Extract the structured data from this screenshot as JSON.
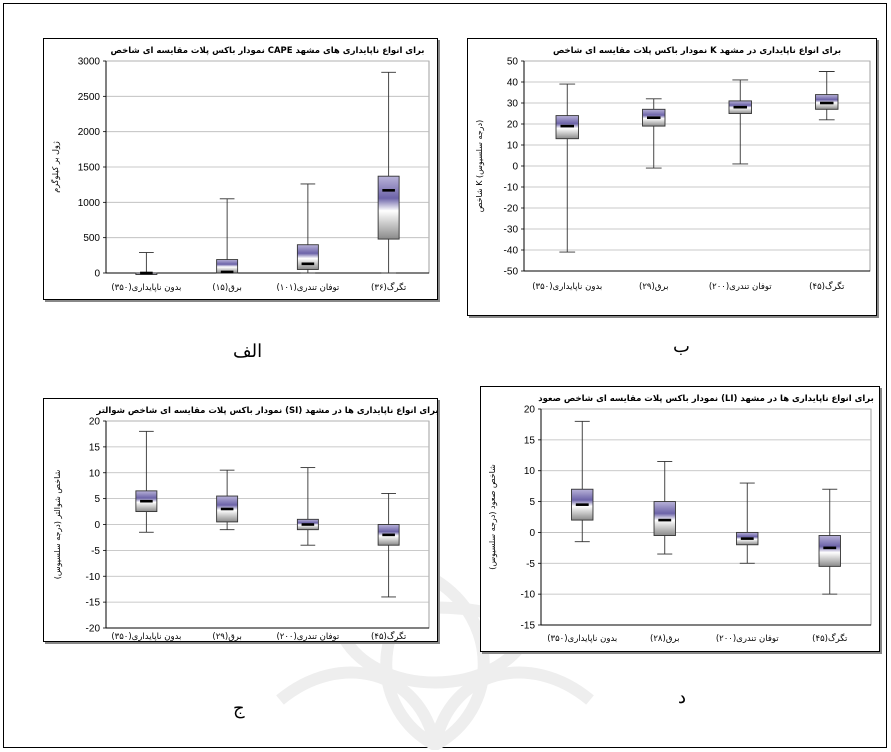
{
  "captions": [
    "الف",
    "ب",
    "ج",
    "د"
  ],
  "chart_data": [
    {
      "type": "box",
      "title": "نمودار باکس پلات مقایسه ای شاخص CAPE برای انواع ناپایداری های مشهد",
      "ylabel": "ژول بر کیلوگرم",
      "ylim": [
        0,
        3000
      ],
      "ytick_step": 500,
      "yticks": [
        "0",
        "500",
        "1000",
        "1500",
        "2000",
        "2500",
        "3000"
      ],
      "categories": [
        "بدون ناپایداری(۳۵۰)",
        "برق(۱۵)",
        "توفان تندری(۱۰۱)",
        "تگرگ(۳۶)"
      ],
      "boxes": [
        {
          "min": 0,
          "q1": 0,
          "median": 0,
          "q3": 0,
          "max": 290
        },
        {
          "min": 0,
          "q1": 0,
          "median": 15,
          "q3": 190,
          "max": 1050
        },
        {
          "min": 0,
          "q1": 50,
          "median": 130,
          "q3": 400,
          "max": 1260
        },
        {
          "min": 0,
          "q1": 480,
          "median": 1170,
          "q3": 1370,
          "max": 2840
        }
      ]
    },
    {
      "type": "box",
      "title": "نمودار باکس پلات مقایسه ای شاخص K برای انواع ناپایداری در مشهد",
      "ylabel": "شاخص K (درجه سلسیوس)",
      "ylim": [
        -50,
        50
      ],
      "ytick_step": 10,
      "yticks": [
        "-50",
        "-40",
        "-30",
        "-20",
        "-10",
        "0",
        "10",
        "20",
        "30",
        "40",
        "50"
      ],
      "categories": [
        "بدون ناپایداری(۳۵۰)",
        "برق(۲۹)",
        "توفان تندری(۲۰۰)",
        "تگرگ(۴۵)"
      ],
      "boxes": [
        {
          "min": -41,
          "q1": 13,
          "median": 19,
          "q3": 24,
          "max": 39
        },
        {
          "min": -1,
          "q1": 19,
          "median": 23,
          "q3": 27,
          "max": 32
        },
        {
          "min": 1,
          "q1": 25,
          "median": 28,
          "q3": 31,
          "max": 41
        },
        {
          "min": 22,
          "q1": 27,
          "median": 30,
          "q3": 34,
          "max": 45
        }
      ]
    },
    {
      "type": "box",
      "title": "نمودار باکس پلات مقایسه ای شاخص شوالتر (SI) برای انواع ناپایداری ها در مشهد",
      "ylabel": "شاخص شوالتر (درجه سلسیوس)",
      "ylim": [
        -20,
        20
      ],
      "ytick_step": 5,
      "yticks": [
        "-20",
        "-15",
        "-10",
        "-5",
        "0",
        "5",
        "10",
        "15",
        "20"
      ],
      "categories": [
        "بدون ناپایداری(۳۵۰)",
        "برق(۲۹)",
        "توفان تندری(۲۰۰)",
        "تگرگ(۴۵)"
      ],
      "boxes": [
        {
          "min": -1.5,
          "q1": 2.5,
          "median": 4.5,
          "q3": 6.5,
          "max": 18
        },
        {
          "min": -1,
          "q1": 0.5,
          "median": 3,
          "q3": 5.5,
          "max": 10.5
        },
        {
          "min": -4,
          "q1": -1,
          "median": 0,
          "q3": 1,
          "max": 11
        },
        {
          "min": -14,
          "q1": -4,
          "median": -2,
          "q3": 0,
          "max": 6
        }
      ]
    },
    {
      "type": "box",
      "title": "نمودار باکس پلات مقایسه ای شاخص صعود (LI) برای انواع ناپایداری ها در مشهد",
      "ylabel": "شاخص صعود (درجه سلسیوس)",
      "ylim": [
        -15,
        20
      ],
      "ytick_step": 5,
      "yticks": [
        "-15",
        "-10",
        "-5",
        "0",
        "5",
        "10",
        "15",
        "20"
      ],
      "categories": [
        "بدون ناپایداری(۳۵۰)",
        "برق(۲۸)",
        "توفان تندری(۲۰۰)",
        "تگرگ(۴۵)"
      ],
      "boxes": [
        {
          "min": -1.5,
          "q1": 2,
          "median": 4.5,
          "q3": 7,
          "max": 18
        },
        {
          "min": -3.5,
          "q1": -0.5,
          "median": 2,
          "q3": 5,
          "max": 11.5
        },
        {
          "min": -5,
          "q1": -2,
          "median": -1,
          "q3": 0,
          "max": 8
        },
        {
          "min": -10,
          "q1": -5.5,
          "median": -2.5,
          "q3": -0.5,
          "max": 7
        }
      ]
    }
  ]
}
